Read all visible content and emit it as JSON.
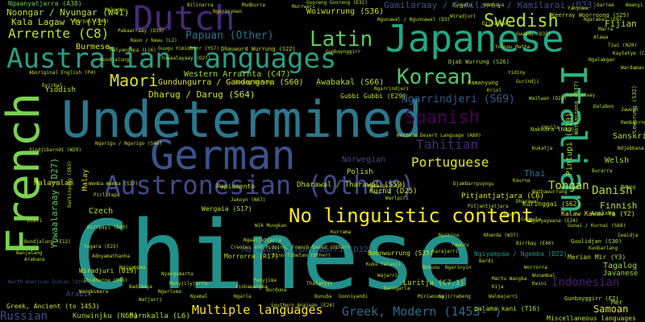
{
  "words": [
    {
      "text": "Chinese",
      "color": "#21918c"
    },
    {
      "text": "Undetermined",
      "color": "#2a788e"
    },
    {
      "text": "French",
      "color": "#7ad151"
    },
    {
      "text": "German",
      "color": "#3b528b"
    },
    {
      "text": "Dutch",
      "color": "#482878"
    },
    {
      "text": "Japanese",
      "color": "#22a884"
    },
    {
      "text": "Australian languages",
      "color": "#2a9d84"
    },
    {
      "text": "Austronesian (Other)",
      "color": "#3e4a89"
    },
    {
      "text": "No linguistic content",
      "color": "#fde725"
    },
    {
      "text": "Italian",
      "color": "#2db27d"
    },
    {
      "text": "Latin",
      "color": "#5ec962"
    },
    {
      "text": "Korean",
      "color": "#52c569"
    },
    {
      "text": "Spanish",
      "color": "#440154"
    },
    {
      "text": "Swedish",
      "color": "#b5de2b"
    },
    {
      "text": "Maori",
      "color": "#dde318"
    },
    {
      "text": "Arrernte (C8)",
      "color": "#c2df23"
    },
    {
      "text": "Portuguese",
      "color": "#e5e419"
    },
    {
      "text": "Tahitian",
      "color": "#482878"
    },
    {
      "text": "Indonesian",
      "color": "#481f70"
    },
    {
      "text": "Multiple languages",
      "color": "#fde725"
    },
    {
      "text": "Greek, Modern (1453- )",
      "color": "#31688e"
    },
    {
      "text": "Russian",
      "color": "#3b528b"
    },
    {
      "text": "Papuan (Other)",
      "color": "#2c728e"
    },
    {
      "text": "Danish",
      "color": "#addc30"
    },
    {
      "text": "Tongan",
      "color": "#c8e020"
    },
    {
      "text": "Ngarrindjeri (S69)",
      "color": "#38598c"
    },
    {
      "text": "Yuwaalaraay (D27)",
      "color": "#5ec962"
    },
    {
      "text": "Kala Lagaw Ya (Y1)",
      "color": "#cae11f"
    },
    {
      "text": "Noongar / Nyungar (W41)",
      "color": "#c0df25"
    },
    {
      "text": "Gamilaraay / Gamilaroi / Kamilaroi (D23)",
      "color": "#3b528b"
    },
    {
      "text": "Ngaanyatjarra (A38)",
      "color": "#6ccd5a"
    },
    {
      "text": "Fijian",
      "color": "#b8de29"
    },
    {
      "text": "Thai",
      "color": "#2d708e"
    },
    {
      "text": "Finnish",
      "color": "#c2df23"
    },
    {
      "text": "Welsh",
      "color": "#a0da39"
    },
    {
      "text": "Samoan",
      "color": "#dde318"
    },
    {
      "text": "Burmese",
      "color": "#d8e219"
    },
    {
      "text": "Yiddish",
      "color": "#c0df25"
    },
    {
      "text": "Czech",
      "color": "#b5de2b"
    },
    {
      "text": "Malay",
      "color": "#dde318"
    },
    {
      "text": "Malayalam",
      "color": "#dde318"
    },
    {
      "text": "Polish",
      "color": "#c8e020"
    },
    {
      "text": "Norwegian",
      "color": "#3e4989"
    },
    {
      "text": "Tagalog",
      "color": "#9dd93b"
    },
    {
      "text": "Javanese",
      "color": "#a5db36"
    },
    {
      "text": "Arabic",
      "color": "#3e4a89"
    },
    {
      "text": "Sanskrit",
      "color": "#a8db34"
    },
    {
      "text": "Pintupi (C10)",
      "color": "#a2da37"
    },
    {
      "text": "Mer",
      "color": "#b0dd2f"
    },
    {
      "text": "Western Arrarnta (C47)",
      "color": "#9fda3a"
    },
    {
      "text": "Gundungurra / Gandangara (S60)",
      "color": "#d8e219"
    },
    {
      "text": "Awabakal (S66)",
      "color": "#b8de29"
    },
    {
      "text": "Dharug / Darug (S64)",
      "color": "#d2e21b"
    },
    {
      "text": "Woiwurrung (S36)",
      "color": "#c8e020"
    },
    {
      "text": "Muruwari / Murrawarri (D32)",
      "color": "#3b528b"
    },
    {
      "text": "Wiradjuri (D19)",
      "color": "#cde11d"
    },
    {
      "text": "Kurnu (D25)",
      "color": "#d0e11c"
    },
    {
      "text": "Pitjantjatjara (C6)",
      "color": "#dde318"
    },
    {
      "text": "Luritja (C7.1)",
      "color": "#c2df23"
    },
    {
      "text": "Dharawal / Tharawal (S59)",
      "color": "#c2df23"
    },
    {
      "text": "Merian Mir (Y3)",
      "color": "#c0df25"
    },
    {
      "text": "Boonwurrung (S35)",
      "color": "#c8e020"
    },
    {
      "text": "Ngiyampaa / Ngemba (D22)",
      "color": "#21918c"
    },
    {
      "text": "Kuringgai (S62)",
      "color": "#c0df25"
    },
    {
      "text": "Kalaw Kawaw Ya (Y2)",
      "color": "#dde318"
    },
    {
      "text": "Gunbayggirr (E7)",
      "color": "#c0df25"
    },
    {
      "text": "Miscellaneous languages",
      "color": "#c0df25"
    },
    {
      "text": "Kunwinjku (N65)",
      "color": "#9dd93b"
    },
    {
      "text": "Parnkalla (L6)",
      "color": "#c2df23"
    },
    {
      "text": "Greek, Ancient (to 1453)",
      "color": "#c8e020"
    },
    {
      "text": "palama kani (T16)",
      "color": "#c0df25"
    },
    {
      "text": "Pamanyung",
      "color": "#c0df25"
    },
    {
      "text": "Gubbi Gubbi (E29)",
      "color": "#c0df25"
    },
    {
      "text": "Djab Wurrung (S26)",
      "color": "#addc30"
    },
    {
      "text": "Keerray Woorroong (S25)",
      "color": "#c0df25"
    },
    {
      "text": "Nakkara (N80)",
      "color": "#a8db34"
    },
    {
      "text": "Gamilaraay",
      "color": "#a0da39"
    },
    {
      "text": "Lewurung (S32)",
      "color": "#a0da39"
    },
    {
      "text": "Wathaurong (S37)",
      "color": "#aadc32"
    },
    {
      "text": "Auslang",
      "color": "#a0da39"
    },
    {
      "text": "Guulidjan (S30)",
      "color": "#c0df25"
    },
    {
      "text": "Ngunawal / Ngunnawal (D3)",
      "color": "#c0df25"
    },
    {
      "text": "Djiringanj",
      "color": "#c0df25"
    },
    {
      "text": "Dhauwurd Wurrung (S22)",
      "color": "#c0df25"
    },
    {
      "text": "Birpai (E40)",
      "color": "#c0df25"
    },
    {
      "text": "Guugu Yimidhirr (Y57)",
      "color": "#c0df25"
    },
    {
      "text": "Nauo / Nawu (L2)",
      "color": "#c0df25"
    },
    {
      "text": "Western Desert Language (A80)",
      "color": "#c0df25"
    },
    {
      "text": "Nhanda (W37)",
      "color": "#c0df25"
    },
    {
      "text": "Wailwan (D24)",
      "color": "#c0df25"
    },
    {
      "text": "Malyangapa (L16)",
      "color": "#c0df25"
    },
    {
      "text": "Wergaia (S17)",
      "color": "#c0df25"
    },
    {
      "text": "Wathawurrung",
      "color": "#c0df25"
    },
    {
      "text": "Morrorra (R17)",
      "color": "#c0df25"
    },
    {
      "text": "Sino-Tibetan (Other)",
      "color": "#c0df25"
    },
    {
      "text": "Creoles and Pidgins, French-based (Other)",
      "color": "#c0df25"
    },
    {
      "text": "North American Indian (Other)",
      "color": "#3e4a89"
    },
    {
      "text": "Southern Anaiwan (E24)",
      "color": "#c0df25"
    },
    {
      "text": "Bundjalung (E12)",
      "color": "#c0df25"
    },
    {
      "text": "Nganyaywana (E24)",
      "color": "#c0df25"
    },
    {
      "text": "Yugara (E23)",
      "color": "#c0df25"
    },
    {
      "text": "Dhudhuroa (S46)",
      "color": "#c0df25"
    },
    {
      "text": "Birrpayi (E40)",
      "color": "#c0df25"
    },
    {
      "text": "Wemba Wemba (S37)",
      "color": "#c0df25"
    },
    {
      "text": "Dyirbal",
      "color": "#c0df25"
    },
    {
      "text": "Darkinyung (S63)",
      "color": "#c0df25"
    },
    {
      "text": "Dharawal",
      "color": "#c0df25"
    },
    {
      "text": "Yindjibarndi (W29)",
      "color": "#c0df25"
    },
    {
      "text": "Aboriginal English (P4)",
      "color": "#c0df25"
    },
    {
      "text": "Ngarigu / Ngarigo (S46)",
      "color": "#c0df25"
    },
    {
      "text": "Ngarrindjeri",
      "color": "#c0df25"
    },
    {
      "text": "Gumbaynggirr",
      "color": "#c0df25"
    },
    {
      "text": "Yidiny",
      "color": "#c0df25"
    },
    {
      "text": "Jakoyn (N67)",
      "color": "#c0df25"
    },
    {
      "text": "Papiamento",
      "color": "#c0df25"
    },
    {
      "text": "Mudalga (A27)",
      "color": "#c0df25"
    },
    {
      "text": "Gunai / Kurnai (S68)",
      "color": "#c0df25"
    },
    {
      "text": "Tiwi (N20)",
      "color": "#c0df25"
    },
    {
      "text": "Guwamu (D37)",
      "color": "#c0df25"
    },
    {
      "text": "Ngarabal (E9)",
      "color": "#c0df25"
    },
    {
      "text": "Bundjalung",
      "color": "#c0df25"
    },
    {
      "text": "Pakaarraay (D39)",
      "color": "#c0df25"
    },
    {
      "text": "Yuwaalayaay (D27)",
      "color": "#c0df25"
    },
    {
      "text": "Birrbay (E40)",
      "color": "#c0df25"
    },
    {
      "text": "Murrwari",
      "color": "#c0df25"
    },
    {
      "text": "Gooreng Gooreng (E32)",
      "color": "#c0df25"
    },
    {
      "text": "Wiradjuri",
      "color": "#c0df25"
    },
    {
      "text": "Gangulu",
      "color": "#c0df25"
    },
    {
      "text": "Kaurna",
      "color": "#c0df25"
    },
    {
      "text": "Kaytetye (C16)",
      "color": "#c0df25"
    },
    {
      "text": "Gurindji",
      "color": "#c0df25"
    },
    {
      "text": "Umpila",
      "color": "#c0df25"
    },
    {
      "text": "Kukatja",
      "color": "#c0df25"
    },
    {
      "text": "Djambarrpuyngu",
      "color": "#c0df25"
    },
    {
      "text": "Wik Mungkan",
      "color": "#c0df25"
    },
    {
      "text": "Ngaatjatjarra",
      "color": "#c0df25"
    },
    {
      "text": "Pitjantjatjara",
      "color": "#c0df25"
    },
    {
      "text": "Gureng Gureng",
      "color": "#c0df25"
    },
    {
      "text": "Warlpiri",
      "color": "#c0df25"
    },
    {
      "text": "Kriol",
      "color": "#c0df25"
    },
    {
      "text": "Yolngu Matha",
      "color": "#c0df25"
    },
    {
      "text": "Arabana",
      "color": "#c0df25"
    },
    {
      "text": "Dieri",
      "color": "#c0df25"
    },
    {
      "text": "Pirlatapa",
      "color": "#c0df25"
    },
    {
      "text": "Adnyamathanha",
      "color": "#c0df25"
    },
    {
      "text": "Banjalang",
      "color": "#c0df25"
    },
    {
      "text": "Ngiyampaa",
      "color": "#c0df25"
    },
    {
      "text": "Wangkumara",
      "color": "#c0df25"
    },
    {
      "text": "Barngarla",
      "color": "#c0df25"
    },
    {
      "text": "Nukunu",
      "color": "#c0df25"
    },
    {
      "text": "Kuku Yalanji",
      "color": "#c0df25"
    },
    {
      "text": "Wajarri",
      "color": "#c0df25"
    },
    {
      "text": "Martu Wangka",
      "color": "#c0df25"
    },
    {
      "text": "Yawuru",
      "color": "#c0df25"
    },
    {
      "text": "Bardi",
      "color": "#c0df25"
    },
    {
      "text": "Kija",
      "color": "#c0df25"
    },
    {
      "text": "Jaru",
      "color": "#c0df25"
    },
    {
      "text": "Walmajarri",
      "color": "#c0df25"
    },
    {
      "text": "Nyangumarta",
      "color": "#c0df25"
    },
    {
      "text": "Manyjilyjarra",
      "color": "#c0df25"
    },
    {
      "text": "Ngarluma",
      "color": "#c0df25"
    },
    {
      "text": "Kurrama",
      "color": "#c0df25"
    },
    {
      "text": "Panyjima",
      "color": "#c0df25"
    },
    {
      "text": "Yinhawangka",
      "color": "#c0df25"
    },
    {
      "text": "Thalanyji",
      "color": "#c0df25"
    },
    {
      "text": "Burduna",
      "color": "#c0df25"
    },
    {
      "text": "Badimaya",
      "color": "#c0df25"
    },
    {
      "text": "Watjarri",
      "color": "#c0df25"
    },
    {
      "text": "Nyamal",
      "color": "#c0df25"
    },
    {
      "text": "Ngarla",
      "color": "#c0df25"
    },
    {
      "text": "Karajarri",
      "color": "#c0df25"
    },
    {
      "text": "Nyikina",
      "color": "#c0df25"
    },
    {
      "text": "Bunuba",
      "color": "#c0df25"
    },
    {
      "text": "Gooniyandi",
      "color": "#c0df25"
    },
    {
      "text": "Miriwoong",
      "color": "#c0df25"
    },
    {
      "text": "Gajirrabeng",
      "color": "#c0df25"
    },
    {
      "text": "Ngarinyin",
      "color": "#c0df25"
    },
    {
      "text": "Worrorra",
      "color": "#c0df25"
    },
    {
      "text": "Wunambal",
      "color": "#c0df25"
    },
    {
      "text": "Kwini",
      "color": "#c0df25"
    },
    {
      "text": "Kunbarlang",
      "color": "#c0df25"
    },
    {
      "text": "Iwaidja",
      "color": "#c0df25"
    },
    {
      "text": "Mawng",
      "color": "#c0df25"
    },
    {
      "text": "Burarra",
      "color": "#c0df25"
    },
    {
      "text": "Ndjebbana",
      "color": "#c0df25"
    },
    {
      "text": "Rembarrnga",
      "color": "#c0df25"
    },
    {
      "text": "Dalabon",
      "color": "#c0df25"
    },
    {
      "text": "Jawoyn",
      "color": "#c0df25"
    },
    {
      "text": "Wardaman",
      "color": "#c0df25"
    },
    {
      "text": "Ngalakgan",
      "color": "#c0df25"
    },
    {
      "text": "Alawa",
      "color": "#c0df25"
    },
    {
      "text": "Marra",
      "color": "#c0df25"
    },
    {
      "text": "Yanyuwa",
      "color": "#c0df25"
    },
    {
      "text": "Garrwa",
      "color": "#c0df25"
    },
    {
      "text": "Waanyi",
      "color": "#c0df25"
    },
    {
      "text": "Wambaya",
      "color": "#c0df25"
    },
    {
      "text": "Jingulu",
      "color": "#c0df25"
    },
    {
      "text": "Mudburra",
      "color": "#c0df25"
    },
    {
      "text": "Ngarinyman",
      "color": "#c0df25"
    },
    {
      "text": "Bilinarra",
      "color": "#c0df25"
    },
    {
      "text": "Malngin",
      "color": "#c0df25"
    }
  ]
}
